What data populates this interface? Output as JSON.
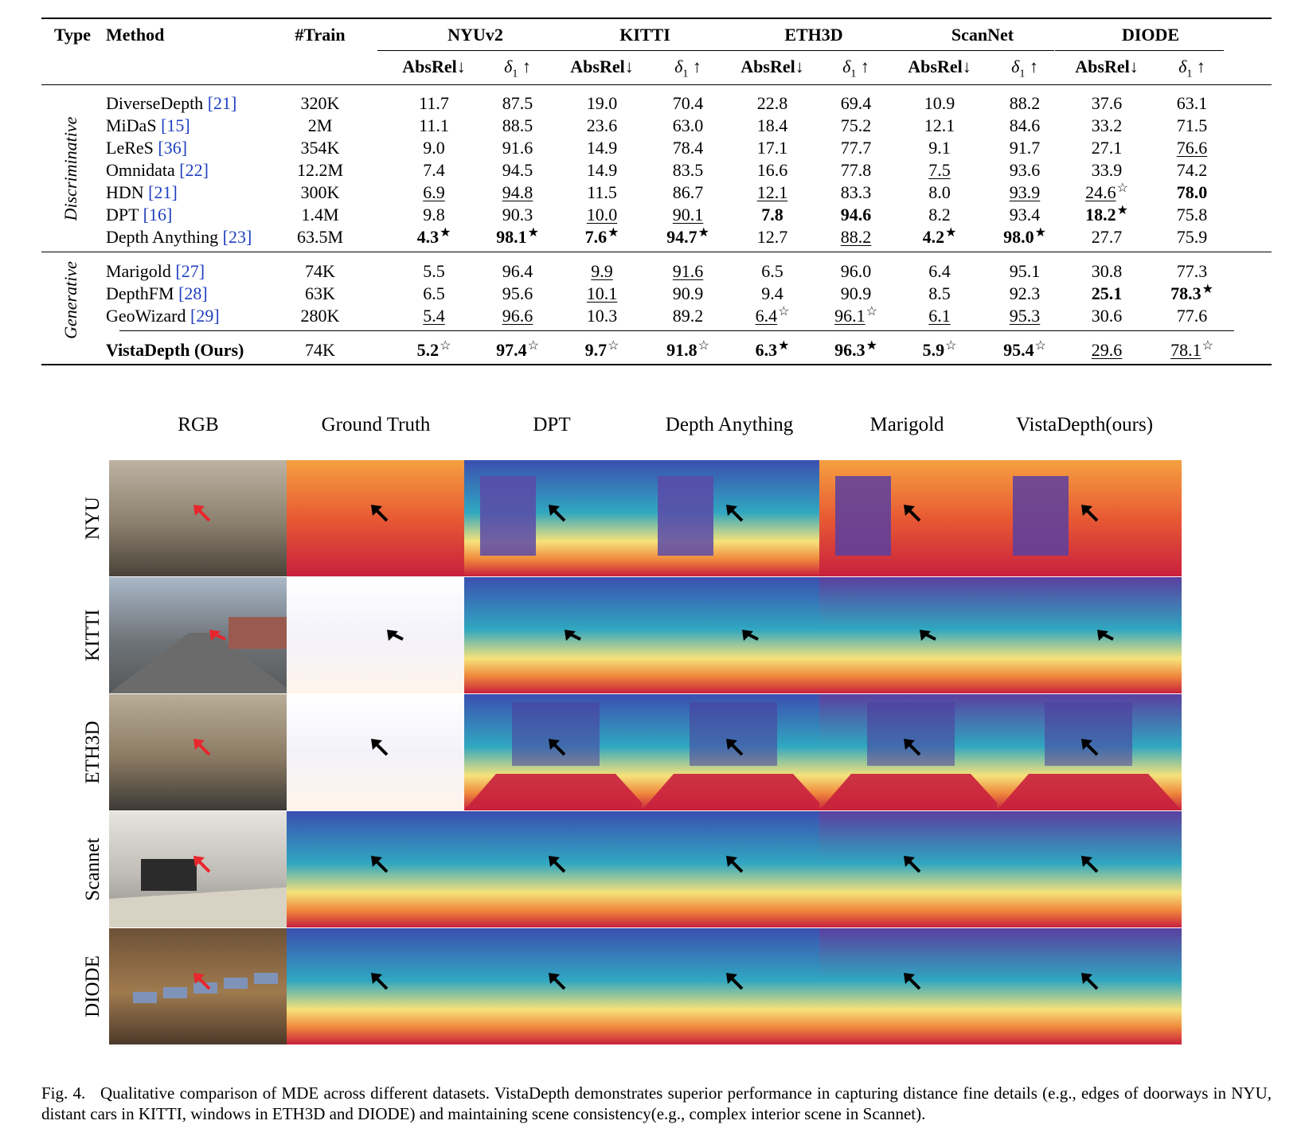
{
  "table": {
    "headers": {
      "type": "Type",
      "method": "Method",
      "train": "#Train",
      "datasets": [
        "NYUv2",
        "KITTI",
        "ETH3D",
        "ScanNet",
        "DIODE"
      ],
      "absrel": "AbsRel↓",
      "delta": "δ",
      "delta_sub": "1",
      "delta_arrow": " ↑"
    },
    "groups": [
      {
        "type": "Discriminative",
        "rows": [
          {
            "method": "DiverseDepth ",
            "cite": "[21]",
            "train": "320K",
            "cells": [
              {
                "v": "11.7"
              },
              {
                "v": "87.5"
              },
              {
                "v": "19.0"
              },
              {
                "v": "70.4"
              },
              {
                "v": "22.8"
              },
              {
                "v": "69.4"
              },
              {
                "v": "10.9"
              },
              {
                "v": "88.2"
              },
              {
                "v": "37.6"
              },
              {
                "v": "63.1"
              }
            ]
          },
          {
            "method": "MiDaS ",
            "cite": "[15]",
            "train": "2M",
            "cells": [
              {
                "v": "11.1"
              },
              {
                "v": "88.5"
              },
              {
                "v": "23.6"
              },
              {
                "v": "63.0"
              },
              {
                "v": "18.4"
              },
              {
                "v": "75.2"
              },
              {
                "v": "12.1"
              },
              {
                "v": "84.6"
              },
              {
                "v": "33.2"
              },
              {
                "v": "71.5"
              }
            ]
          },
          {
            "method": "LeReS ",
            "cite": "[36]",
            "train": "354K",
            "cells": [
              {
                "v": "9.0"
              },
              {
                "v": "91.6"
              },
              {
                "v": "14.9"
              },
              {
                "v": "78.4"
              },
              {
                "v": "17.1"
              },
              {
                "v": "77.7"
              },
              {
                "v": "9.1"
              },
              {
                "v": "91.7"
              },
              {
                "v": "27.1"
              },
              {
                "v": "76.6",
                "u": true
              }
            ]
          },
          {
            "method": "Omnidata ",
            "cite": "[22]",
            "train": "12.2M",
            "cells": [
              {
                "v": "7.4"
              },
              {
                "v": "94.5"
              },
              {
                "v": "14.9"
              },
              {
                "v": "83.5"
              },
              {
                "v": "16.6"
              },
              {
                "v": "77.8"
              },
              {
                "v": "7.5",
                "u": true
              },
              {
                "v": "93.6"
              },
              {
                "v": "33.9"
              },
              {
                "v": "74.2"
              }
            ]
          },
          {
            "method": "HDN ",
            "cite": "[21]",
            "train": "300K",
            "cells": [
              {
                "v": "6.9",
                "u": true
              },
              {
                "v": "94.8",
                "u": true
              },
              {
                "v": "11.5"
              },
              {
                "v": "86.7"
              },
              {
                "v": "12.1",
                "u": true
              },
              {
                "v": "83.3"
              },
              {
                "v": "8.0"
              },
              {
                "v": "93.9",
                "u": true
              },
              {
                "v": "24.6",
                "u": true,
                "m": "☆"
              },
              {
                "v": "78.0",
                "b": true
              }
            ]
          },
          {
            "method": "DPT ",
            "cite": "[16]",
            "train": "1.4M",
            "cells": [
              {
                "v": "9.8"
              },
              {
                "v": "90.3"
              },
              {
                "v": "10.0",
                "u": true
              },
              {
                "v": "90.1",
                "u": true
              },
              {
                "v": "7.8",
                "b": true
              },
              {
                "v": "94.6",
                "b": true
              },
              {
                "v": "8.2"
              },
              {
                "v": "93.4"
              },
              {
                "v": "18.2",
                "b": true,
                "m": "★"
              },
              {
                "v": "75.8"
              }
            ]
          },
          {
            "method": "Depth Anything ",
            "cite": "[23]",
            "train": "63.5M",
            "cells": [
              {
                "v": "4.3",
                "b": true,
                "m": "★"
              },
              {
                "v": "98.1",
                "b": true,
                "m": "★"
              },
              {
                "v": "7.6",
                "b": true,
                "m": "★"
              },
              {
                "v": "94.7",
                "b": true,
                "m": "★"
              },
              {
                "v": "12.7"
              },
              {
                "v": "88.2",
                "u": true
              },
              {
                "v": "4.2",
                "b": true,
                "m": "★"
              },
              {
                "v": "98.0",
                "b": true,
                "m": "★"
              },
              {
                "v": "27.7"
              },
              {
                "v": "75.9"
              }
            ]
          }
        ]
      },
      {
        "type": "Generative",
        "rows": [
          {
            "method": "Marigold ",
            "cite": "[27]",
            "train": "74K",
            "cells": [
              {
                "v": "5.5"
              },
              {
                "v": "96.4"
              },
              {
                "v": "9.9",
                "u": true
              },
              {
                "v": "91.6",
                "u": true
              },
              {
                "v": "6.5"
              },
              {
                "v": "96.0"
              },
              {
                "v": "6.4"
              },
              {
                "v": "95.1"
              },
              {
                "v": "30.8"
              },
              {
                "v": "77.3"
              }
            ]
          },
          {
            "method": "DepthFM ",
            "cite": "[28]",
            "train": "63K",
            "cells": [
              {
                "v": "6.5"
              },
              {
                "v": "95.6"
              },
              {
                "v": "10.1",
                "u": true
              },
              {
                "v": "90.9"
              },
              {
                "v": "9.4"
              },
              {
                "v": "90.9"
              },
              {
                "v": "8.5"
              },
              {
                "v": "92.3"
              },
              {
                "v": "25.1",
                "b": true
              },
              {
                "v": "78.3",
                "b": true,
                "m": "★"
              }
            ]
          },
          {
            "method": "GeoWizard ",
            "cite": "[29]",
            "train": "280K",
            "cells": [
              {
                "v": "5.4",
                "u": true
              },
              {
                "v": "96.6",
                "u": true
              },
              {
                "v": "10.3"
              },
              {
                "v": "89.2"
              },
              {
                "v": "6.4",
                "u": true,
                "m": "☆"
              },
              {
                "v": "96.1",
                "u": true,
                "m": "☆"
              },
              {
                "v": "6.1",
                "u": true
              },
              {
                "v": "95.3",
                "u": true
              },
              {
                "v": "30.6"
              },
              {
                "v": "77.6"
              }
            ]
          },
          {
            "method": "VistaDepth (Ours)",
            "cite": "",
            "train": "74K",
            "bold_method": true,
            "cells": [
              {
                "v": "5.2",
                "b": true,
                "m": "☆"
              },
              {
                "v": "97.4",
                "b": true,
                "m": "☆"
              },
              {
                "v": "9.7",
                "b": true,
                "m": "☆"
              },
              {
                "v": "91.8",
                "b": true,
                "m": "☆"
              },
              {
                "v": "6.3",
                "b": true,
                "m": "★"
              },
              {
                "v": "96.3",
                "b": true,
                "m": "★"
              },
              {
                "v": "5.9",
                "b": true,
                "m": "☆"
              },
              {
                "v": "95.4",
                "b": true,
                "m": "☆"
              },
              {
                "v": "29.6",
                "u": true
              },
              {
                "v": "78.1",
                "u": true,
                "m": "☆"
              }
            ]
          }
        ]
      }
    ]
  },
  "figure": {
    "columns": [
      "RGB",
      "Ground Truth",
      "DPT",
      "Depth Anything",
      "Marigold",
      "VistaDepth(ours)"
    ],
    "rows": [
      "NYU",
      "KITTI",
      "ETH3D",
      "Scannet",
      "DIODE"
    ]
  },
  "caption": {
    "label": "Fig. 4.",
    "text": "Qualitative comparison of MDE across different datasets. VistaDepth demonstrates superior performance in capturing distance fine details (e.g., edges of doorways in NYU, distant cars in KITTI, windows in ETH3D and DIODE) and maintaining scene consistency(e.g., complex interior scene in Scannet)."
  },
  "colors": {
    "citation": "#1f3fbf",
    "depth_near": "#c8203d",
    "depth_mid": "#f6e27a",
    "depth_far": "#5a3fa0"
  }
}
